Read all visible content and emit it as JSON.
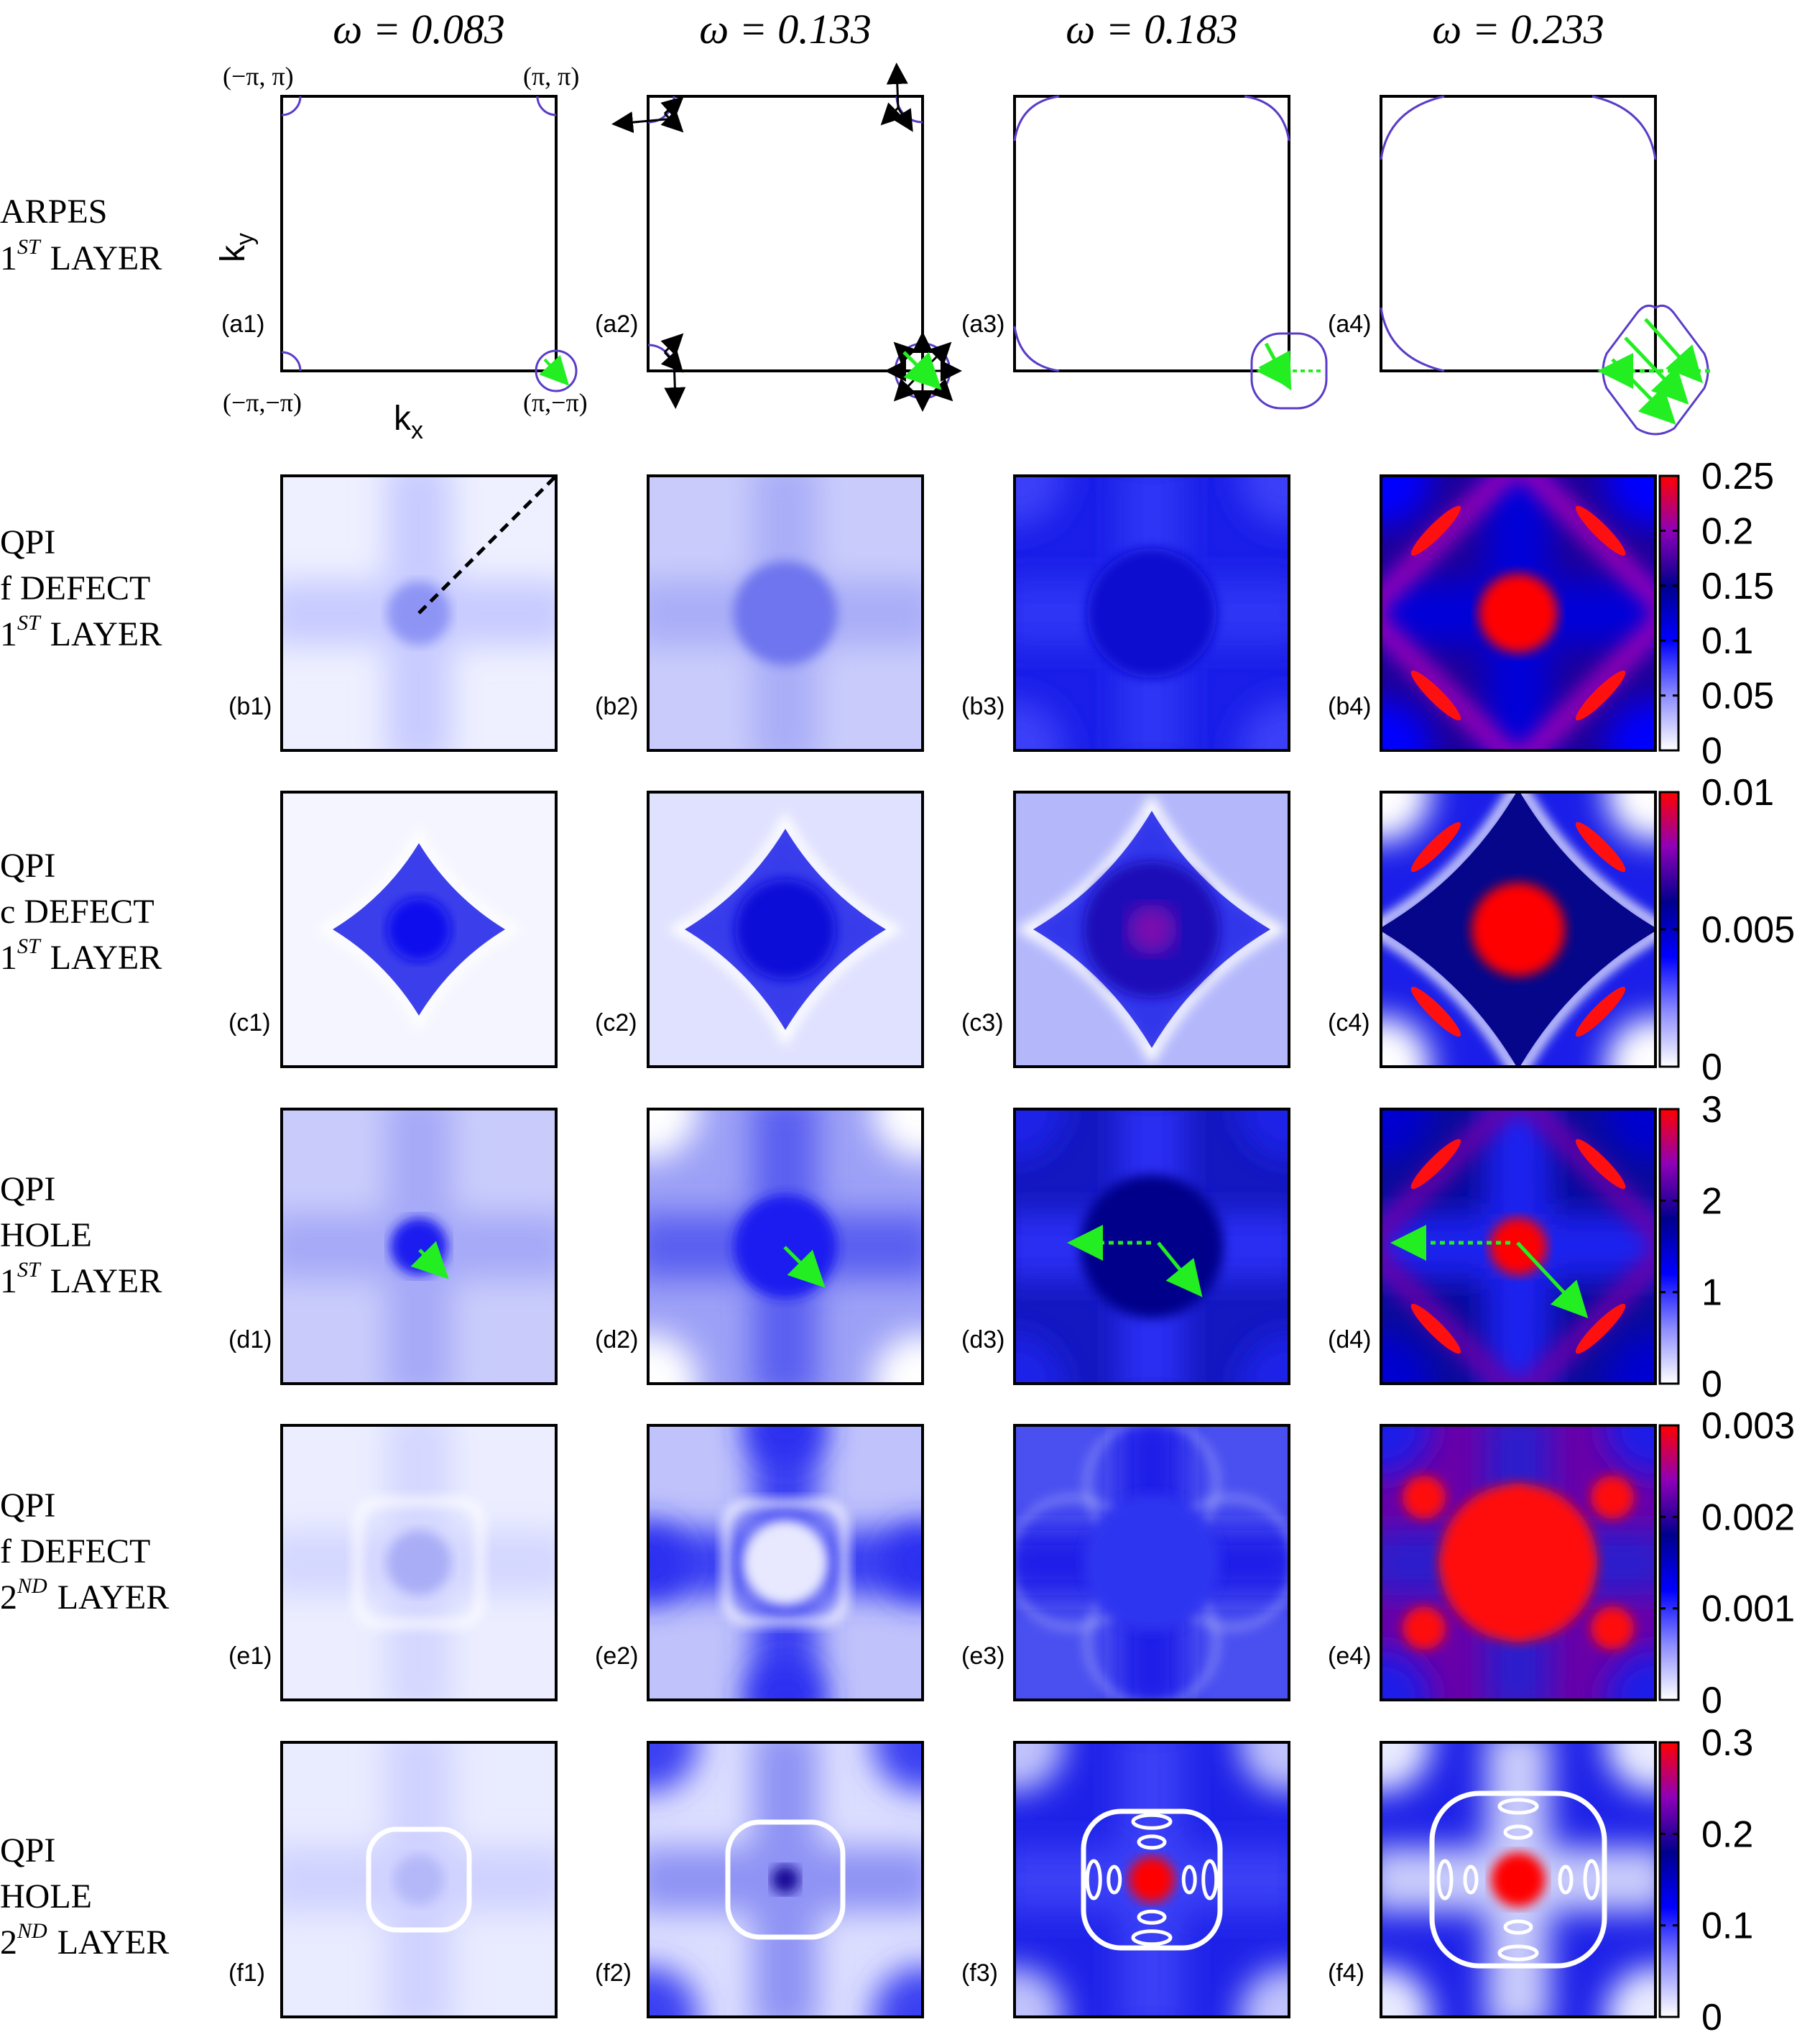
{
  "columns": [
    {
      "label": "ω = 0.083"
    },
    {
      "label": "ω = 0.133"
    },
    {
      "label": "ω = 0.183"
    },
    {
      "label": "ω = 0.233"
    }
  ],
  "rows": [
    {
      "id": "a",
      "lines": [
        "ARPES",
        "1",
        "LAYER"
      ],
      "sup": "ST"
    },
    {
      "id": "b",
      "lines": [
        "QPI",
        "f DEFECT",
        "1",
        "LAYER"
      ],
      "sup": "ST"
    },
    {
      "id": "c",
      "lines": [
        "QPI",
        "c DEFECT",
        "1",
        "LAYER"
      ],
      "sup": "ST"
    },
    {
      "id": "d",
      "lines": [
        "QPI",
        "HOLE",
        "1",
        "LAYER"
      ],
      "sup": "ST"
    },
    {
      "id": "e",
      "lines": [
        "QPI",
        "f DEFECT",
        "2",
        "LAYER"
      ],
      "sup": "ND"
    },
    {
      "id": "f",
      "lines": [
        "QPI",
        "HOLE",
        "2",
        "LAYER"
      ],
      "sup": "ND"
    }
  ],
  "panel_labels": [
    [
      "(a1)",
      "(a2)",
      "(a3)",
      "(a4)"
    ],
    [
      "(b1)",
      "(b2)",
      "(b3)",
      "(b4)"
    ],
    [
      "(c1)",
      "(c2)",
      "(c3)",
      "(c4)"
    ],
    [
      "(d1)",
      "(d2)",
      "(d3)",
      "(d4)"
    ],
    [
      "(e1)",
      "(e2)",
      "(e3)",
      "(e4)"
    ],
    [
      "(f1)",
      "(f2)",
      "(f3)",
      "(f4)"
    ]
  ],
  "corner_labels": {
    "top_left": "(−π, π)",
    "top_right": "(π, π)",
    "bottom_left": "(−π,−π)",
    "bottom_right": "(π,−π)"
  },
  "axis_labels": {
    "x": "k",
    "x_sub": "x",
    "y": "k",
    "y_sub": "y"
  },
  "colorbars": [
    {
      "row": "b",
      "ticks": [
        "0.25",
        "0.2",
        "0.15",
        "0.1",
        "0.05",
        "0"
      ],
      "tick_values": [
        0.25,
        0.2,
        0.15,
        0.1,
        0.05,
        0
      ],
      "max": 0.25
    },
    {
      "row": "c",
      "ticks": [
        "0.01",
        "0.005",
        "0"
      ],
      "tick_values": [
        0.01,
        0.005,
        0
      ],
      "max": 0.01
    },
    {
      "row": "d",
      "ticks": [
        "3",
        "2",
        "1",
        "0"
      ],
      "tick_values": [
        3,
        2,
        1,
        0
      ],
      "max": 3
    },
    {
      "row": "e",
      "ticks": [
        "0.003",
        "0.002",
        "0.001",
        "0"
      ],
      "tick_values": [
        0.003,
        0.002,
        0.001,
        0
      ],
      "max": 0.003
    },
    {
      "row": "f",
      "ticks": [
        "0.3",
        "0.2",
        "0.1",
        "0"
      ],
      "tick_values": [
        0.3,
        0.2,
        0.1,
        0
      ],
      "max": 0.3
    }
  ],
  "colors": {
    "colormap": [
      "#ffffff",
      "#0000ff",
      "#00006e",
      "#9400b4",
      "#ff0000"
    ],
    "fermi_contour": "#5a3cc8",
    "arrow_green": "#22ee22",
    "arrow_black": "#000000"
  }
}
